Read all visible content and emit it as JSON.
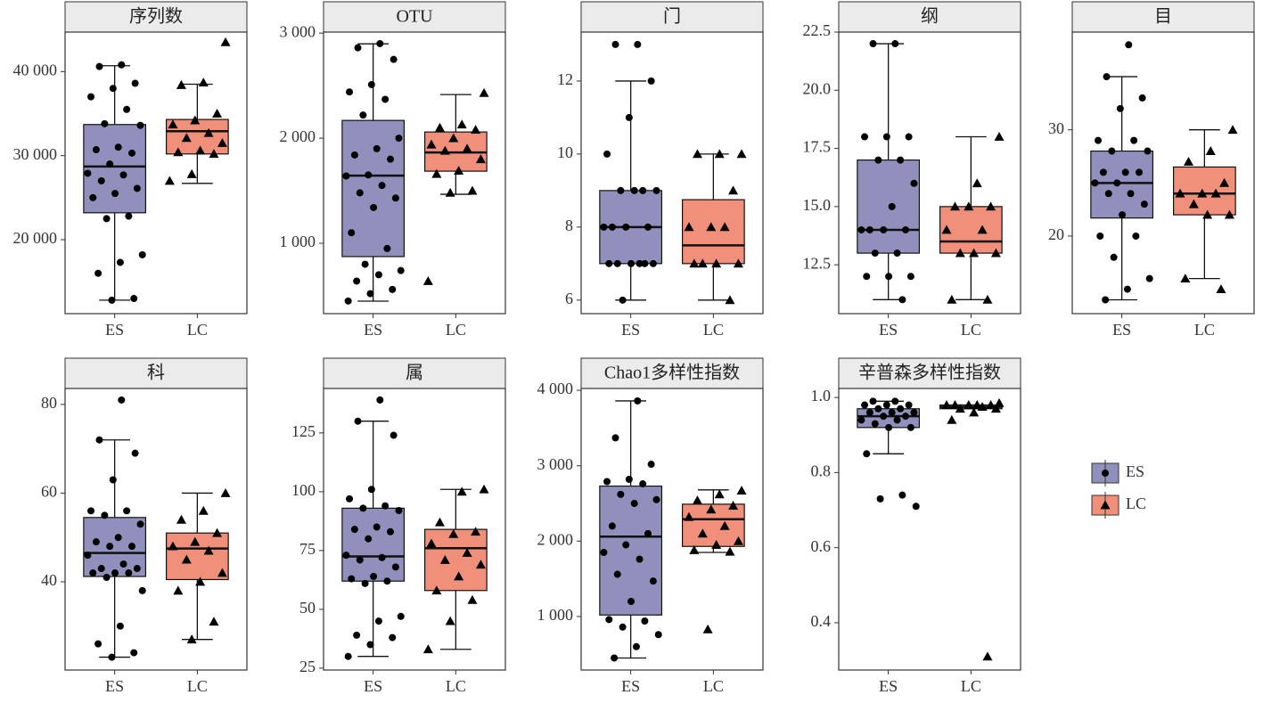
{
  "legend": [
    {
      "name": "ES",
      "color": "#9190bd",
      "marker": "circle"
    },
    {
      "name": "LC",
      "color": "#f0907a",
      "marker": "triangle"
    }
  ],
  "chart_data": [
    {
      "type": "box",
      "title": "序列数",
      "categories": [
        "ES",
        "LC"
      ],
      "ylim": [
        11200,
        44700
      ],
      "yticks": [
        {
          "value": 20000,
          "label": "20 000"
        },
        {
          "value": 30000,
          "label": "30 000"
        },
        {
          "value": 40000,
          "label": "40 000"
        }
      ],
      "boxes": [
        {
          "min": 12800,
          "q1": 23200,
          "median": 28700,
          "q3": 33700,
          "max": 40700,
          "points": [
            40800,
            40600,
            38600,
            38000,
            37000,
            35500,
            33800,
            33600,
            31000,
            30700,
            30300,
            29000,
            27900,
            27700,
            27000,
            26100,
            25500,
            25000,
            22800,
            22500,
            18200,
            17300,
            16000,
            13000,
            12800
          ]
        },
        {
          "min": 26700,
          "q1": 30200,
          "median": 32900,
          "q3": 34300,
          "max": 38500,
          "points": [
            43500,
            38700,
            38400,
            35000,
            34200,
            33700,
            32700,
            32100,
            31500,
            30600,
            30400,
            30200,
            27800,
            27000
          ]
        }
      ]
    },
    {
      "type": "box",
      "title": "OTU",
      "categories": [
        "ES",
        "LC"
      ],
      "ylim": [
        330,
        3010
      ],
      "yticks": [
        {
          "value": 1000,
          "label": "1 000"
        },
        {
          "value": 2000,
          "label": "2 000"
        },
        {
          "value": 3000,
          "label": "3 000"
        }
      ],
      "boxes": [
        {
          "min": 449,
          "q1": 873,
          "median": 1644,
          "q3": 2169,
          "max": 2898,
          "points": [
            2900,
            2860,
            2750,
            2510,
            2440,
            2370,
            2220,
            2000,
            1900,
            1840,
            1800,
            1650,
            1640,
            1550,
            1480,
            1430,
            1340,
            1100,
            950,
            800,
            740,
            700,
            640,
            560,
            520,
            450
          ]
        },
        {
          "min": 1466,
          "q1": 1686,
          "median": 1864,
          "q3": 2059,
          "max": 2415,
          "points": [
            2430,
            2130,
            2100,
            2080,
            2000,
            1940,
            1900,
            1880,
            1800,
            1690,
            1660,
            1500,
            1480,
            640
          ]
        }
      ]
    },
    {
      "type": "box",
      "title": "门",
      "categories": [
        "ES",
        "LC"
      ],
      "ylim": [
        5.63,
        13.34
      ],
      "yticks": [
        6,
        8,
        10,
        12
      ],
      "boxes": [
        {
          "min": 6,
          "q1": 7,
          "median": 8,
          "q3": 9,
          "max": 12,
          "points": [
            13,
            13,
            12,
            11,
            10,
            9,
            9,
            9,
            9,
            8,
            8,
            8,
            8,
            7,
            7,
            7,
            7,
            7,
            7,
            6
          ]
        },
        {
          "min": 6,
          "q1": 7,
          "median": 7.5,
          "q3": 8.75,
          "max": 10,
          "points": [
            10,
            10,
            10,
            9,
            8,
            8,
            8,
            7,
            7,
            7,
            7,
            6
          ]
        }
      ]
    },
    {
      "type": "box",
      "title": "纲",
      "categories": [
        "ES",
        "LC"
      ],
      "ylim": [
        10.4,
        22.5
      ],
      "yticks": [
        12.5,
        {
          "value": 15,
          "label": "15.0"
        },
        17.5,
        {
          "value": 20,
          "label": "20.0"
        },
        22.5
      ],
      "boxes": [
        {
          "min": 11,
          "q1": 13,
          "median": 14,
          "q3": 17,
          "max": 22,
          "points": [
            22,
            22,
            18,
            18,
            18,
            17,
            17,
            16,
            15,
            14,
            14,
            14,
            14,
            13,
            13,
            12,
            12,
            12,
            11
          ]
        },
        {
          "min": 11,
          "q1": 13,
          "median": 13.5,
          "q3": 15,
          "max": 18,
          "points": [
            18,
            16,
            15,
            15,
            15,
            14,
            14,
            13,
            13,
            13,
            11,
            11
          ]
        }
      ]
    },
    {
      "type": "box",
      "title": "目",
      "categories": [
        "ES",
        "LC"
      ],
      "ylim": [
        12.7,
        39.2
      ],
      "yticks": [
        20,
        30
      ],
      "boxes": [
        {
          "min": 14,
          "q1": 21.7,
          "median": 25,
          "q3": 28,
          "max": 35,
          "points": [
            38,
            35,
            33,
            32,
            29,
            29,
            28,
            28,
            26,
            26,
            26,
            25,
            25,
            24,
            24,
            23,
            22,
            20,
            20,
            18,
            16,
            15,
            14
          ]
        },
        {
          "min": 16,
          "q1": 22,
          "median": 24,
          "q3": 26.5,
          "max": 30,
          "points": [
            30,
            28,
            27,
            25,
            24,
            24,
            24,
            23,
            22,
            22,
            16,
            15
          ]
        }
      ]
    },
    {
      "type": "box",
      "title": "科",
      "categories": [
        "ES",
        "LC"
      ],
      "ylim": [
        20.1,
        83.6
      ],
      "yticks": [
        40,
        60,
        80
      ],
      "boxes": [
        {
          "min": 23,
          "q1": 41.2,
          "median": 46.5,
          "q3": 54.5,
          "max": 72,
          "points": [
            81,
            72,
            69,
            63,
            56,
            56,
            55,
            53,
            50,
            49,
            48,
            48,
            46,
            44,
            43,
            43,
            42,
            42,
            42,
            41,
            38,
            30,
            26,
            24,
            23
          ]
        },
        {
          "min": 27,
          "q1": 40.5,
          "median": 47.5,
          "q3": 51,
          "max": 60,
          "points": [
            60,
            56,
            54,
            51,
            49,
            48,
            47,
            45,
            42,
            40,
            38,
            31,
            27
          ]
        }
      ]
    },
    {
      "type": "box",
      "title": "属",
      "categories": [
        "ES",
        "LC"
      ],
      "ylim": [
        24.2,
        143.9
      ],
      "yticks": [
        25,
        50,
        75,
        100,
        125
      ],
      "boxes": [
        {
          "min": 30,
          "q1": 62,
          "median": 72.5,
          "q3": 93,
          "max": 130,
          "points": [
            139,
            130,
            124,
            101,
            97,
            94,
            93,
            92,
            85,
            84,
            83,
            80,
            73,
            72,
            71,
            68,
            64,
            63,
            62,
            61,
            47,
            45,
            39,
            38,
            35,
            30
          ]
        },
        {
          "min": 33,
          "q1": 58,
          "median": 76,
          "q3": 84,
          "max": 101,
          "points": [
            101,
            100,
            87,
            83,
            82,
            78,
            74,
            71,
            69,
            64,
            58,
            54,
            45,
            33
          ]
        }
      ]
    },
    {
      "type": "box",
      "title": "Chao1多样性指数",
      "categories": [
        "ES",
        "LC"
      ],
      "ylim": [
        290,
        4025
      ],
      "yticks": [
        {
          "value": 1000,
          "label": "1 000"
        },
        {
          "value": 2000,
          "label": "2 000"
        },
        {
          "value": 3000,
          "label": "3 000"
        },
        {
          "value": 4000,
          "label": "4 000"
        }
      ],
      "boxes": [
        {
          "min": 450,
          "q1": 1020,
          "median": 2060,
          "q3": 2730,
          "max": 3860,
          "points": [
            3860,
            3370,
            3020,
            2820,
            2790,
            2760,
            2620,
            2550,
            2500,
            2200,
            2100,
            1950,
            1850,
            1760,
            1560,
            1470,
            1200,
            960,
            940,
            860,
            760,
            600,
            450
          ]
        },
        {
          "min": 1850,
          "q1": 1930,
          "median": 2290,
          "q3": 2490,
          "max": 2680,
          "points": [
            2670,
            2620,
            2540,
            2470,
            2420,
            2320,
            2200,
            2100,
            2000,
            1950,
            1880,
            1860,
            830
          ]
        }
      ]
    },
    {
      "type": "box",
      "title": "辛普森多样性指数",
      "categories": [
        "ES",
        "LC"
      ],
      "ylim": [
        0.274,
        1.024
      ],
      "yticks": [
        0.4,
        0.6,
        0.8,
        {
          "value": 1,
          "label": "1.0"
        }
      ],
      "boxes": [
        {
          "min": 0.85,
          "q1": 0.92,
          "median": 0.95,
          "q3": 0.97,
          "max": 0.99,
          "points": [
            0.99,
            0.99,
            0.98,
            0.98,
            0.98,
            0.97,
            0.97,
            0.96,
            0.96,
            0.96,
            0.95,
            0.95,
            0.94,
            0.94,
            0.93,
            0.92,
            0.92,
            0.85,
            0.74,
            0.73,
            0.71
          ]
        },
        {
          "min": 0.97,
          "q1": 0.97,
          "median": 0.975,
          "q3": 0.98,
          "max": 0.98,
          "points": [
            0.985,
            0.98,
            0.98,
            0.98,
            0.98,
            0.98,
            0.975,
            0.97,
            0.97,
            0.96,
            0.94,
            0.31
          ]
        }
      ]
    }
  ]
}
